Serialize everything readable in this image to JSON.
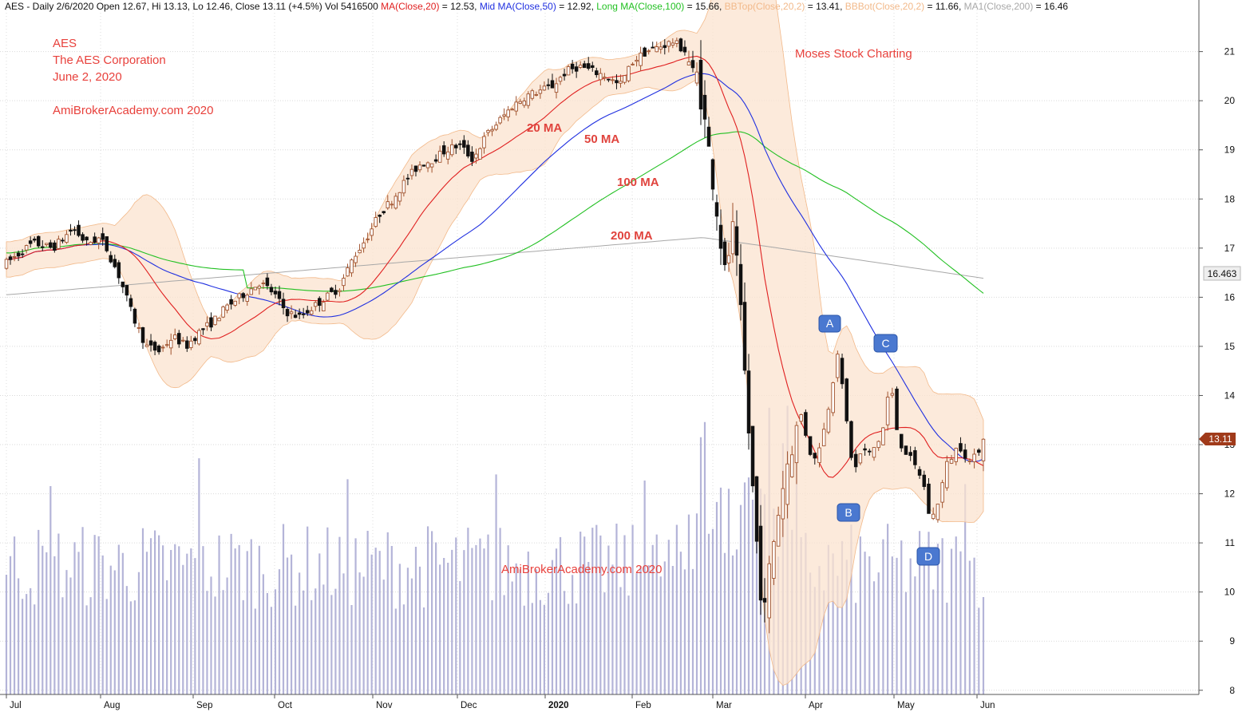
{
  "header": {
    "segments": [
      {
        "text": "AES - Daily 2/6/2020 Open 12.67, Hi 13.13, Lo 12.46, Close 13.11 (+4.5%) Vol 5416500 ",
        "color": "#111111"
      },
      {
        "text": "MA(Close,20)",
        "color": "#e02020"
      },
      {
        "text": " = 12.53, ",
        "color": "#111111"
      },
      {
        "text": "Mid MA(Close,50)",
        "color": "#2030e0"
      },
      {
        "text": " = 12.92, ",
        "color": "#111111"
      },
      {
        "text": "Long MA(Close,100)",
        "color": "#22c022"
      },
      {
        "text": " = 15.66, ",
        "color": "#111111"
      },
      {
        "text": "BBTop(Close,20,2)",
        "color": "#f2b98a"
      },
      {
        "text": " = 13.41, ",
        "color": "#111111"
      },
      {
        "text": "BBBot(Close,20,2)",
        "color": "#f2b98a"
      },
      {
        "text": " = 11.66, ",
        "color": "#111111"
      },
      {
        "text": "MA1(Close,200)",
        "color": "#a8a8a8"
      },
      {
        "text": " = 16.46",
        "color": "#111111"
      }
    ]
  },
  "annotations": {
    "ticker": "AES",
    "company": "The AES Corporation",
    "date": "June 2, 2020",
    "site_top": "AmiBrokerAcademy.com  2020",
    "site_bottom": "AmiBrokerAcademy.com  2020",
    "brand": "Moses Stock Charting",
    "ma20": "20 MA",
    "ma50": "50 MA",
    "ma100": "100 MA",
    "ma200": "200 MA"
  },
  "markers": [
    {
      "id": "A",
      "label": "A"
    },
    {
      "id": "B",
      "label": "B"
    },
    {
      "id": "C",
      "label": "C"
    },
    {
      "id": "D",
      "label": "D"
    }
  ],
  "price_tags": {
    "ma200_value": "16.463",
    "close_value": "13.11"
  },
  "colors": {
    "ma20": "#e02020",
    "ma50": "#2030e0",
    "ma100": "#22c022",
    "ma200": "#a8a8a8",
    "bollinger_fill": "#fbe3cf",
    "bollinger_edge": "#f2b98a",
    "volume": "#b4b4d8",
    "annotation_text": "#e8413c",
    "marker_fill": "#4a78d0",
    "close_tag": "#a03a1a"
  },
  "chart_data": {
    "type": "candlestick",
    "title": "AES - Daily",
    "y_axis": {
      "ticks": [
        8,
        9,
        10,
        11,
        12,
        13,
        14,
        15,
        16,
        17,
        18,
        19,
        20,
        21
      ],
      "ylim": [
        7.85,
        22.05
      ]
    },
    "x_axis": {
      "labels": [
        "Jul",
        "Aug",
        "Sep",
        "Oct",
        "Nov",
        "Dec",
        "2020",
        "Feb",
        "Mar",
        "Apr",
        "May",
        "Jun"
      ]
    },
    "price_path": [
      {
        "month": "Jul 2019",
        "close": 16.9
      },
      {
        "month": "Aug 2019",
        "close": 15.3
      },
      {
        "month": "Sep 2019",
        "close": 15.6
      },
      {
        "month": "Oct 2019",
        "close": 15.9
      },
      {
        "month": "Nov 2019",
        "close": 17.6
      },
      {
        "month": "Dec 2019",
        "close": 19.1
      },
      {
        "month": "Jan 2020",
        "close": 20.5
      },
      {
        "month": "Feb 2020",
        "close": 21.0
      },
      {
        "month": "Mar 2020",
        "close": 10.0
      },
      {
        "month": "Apr 2020",
        "close": 13.5
      },
      {
        "month": "May 2020",
        "close": 12.2
      },
      {
        "month": "Jun 2020",
        "close": 13.11
      }
    ],
    "indicators": [
      {
        "name": "MA(Close,20)",
        "last": 12.53
      },
      {
        "name": "Mid MA(Close,50)",
        "last": 12.92
      },
      {
        "name": "Long MA(Close,100)",
        "last": 15.66
      },
      {
        "name": "BBTop(Close,20,2)",
        "last": 13.41
      },
      {
        "name": "BBBot(Close,20,2)",
        "last": 11.66
      },
      {
        "name": "MA1(Close,200)",
        "last": 16.46
      }
    ],
    "last_bar": {
      "date": "2/6/2020",
      "open": 12.67,
      "high": 13.13,
      "low": 12.46,
      "close": 13.11,
      "change": "+4.5%",
      "volume": 5416500
    }
  }
}
